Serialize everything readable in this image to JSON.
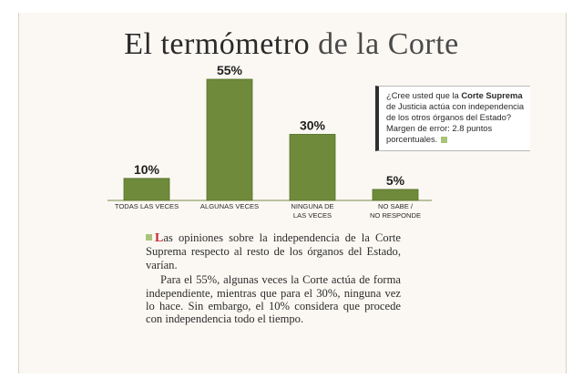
{
  "header": {
    "title_part1": "El termómetro ",
    "title_part2": "de la Corte"
  },
  "chart_data": {
    "type": "bar",
    "categories": [
      "TODAS LAS VECES",
      "ALGUNAS VECES",
      "NINGUNA DE LAS VECES",
      "NO SABE / NO RESPONDE"
    ],
    "category_lines": [
      [
        "TODAS LAS VECES"
      ],
      [
        "ALGUNAS VECES"
      ],
      [
        "NINGUNA DE",
        "LAS VECES"
      ],
      [
        "NO SABE /",
        "NO RESPONDE"
      ]
    ],
    "values": [
      10,
      55,
      30,
      5
    ],
    "value_labels": [
      "10%",
      "55%",
      "30%",
      "5%"
    ],
    "ylim": [
      0,
      55
    ],
    "grid": false,
    "bar_color": "#6f8a3a",
    "bar_edge_color": "#55702a"
  },
  "legend": {
    "question_intro": "¿Cree usted que la ",
    "question_bold": "Corte Suprema",
    "question_rest": " de Justicia actúa con independencia de los otros órganos del Estado? Margen de error: 2.8 puntos porcentuales."
  },
  "article": {
    "dropcap": "L",
    "p1_rest": "as opiniones sobre la independencia de la Corte Suprema respecto al resto de los órganos del Estado, varían.",
    "p2": "Para el 55%, algunas veces la Corte actúa de forma independiente, mientras que para el 30%, ninguna vez lo hace. Sin embargo, el 10% considera que procede con independencia todo el tiempo."
  }
}
